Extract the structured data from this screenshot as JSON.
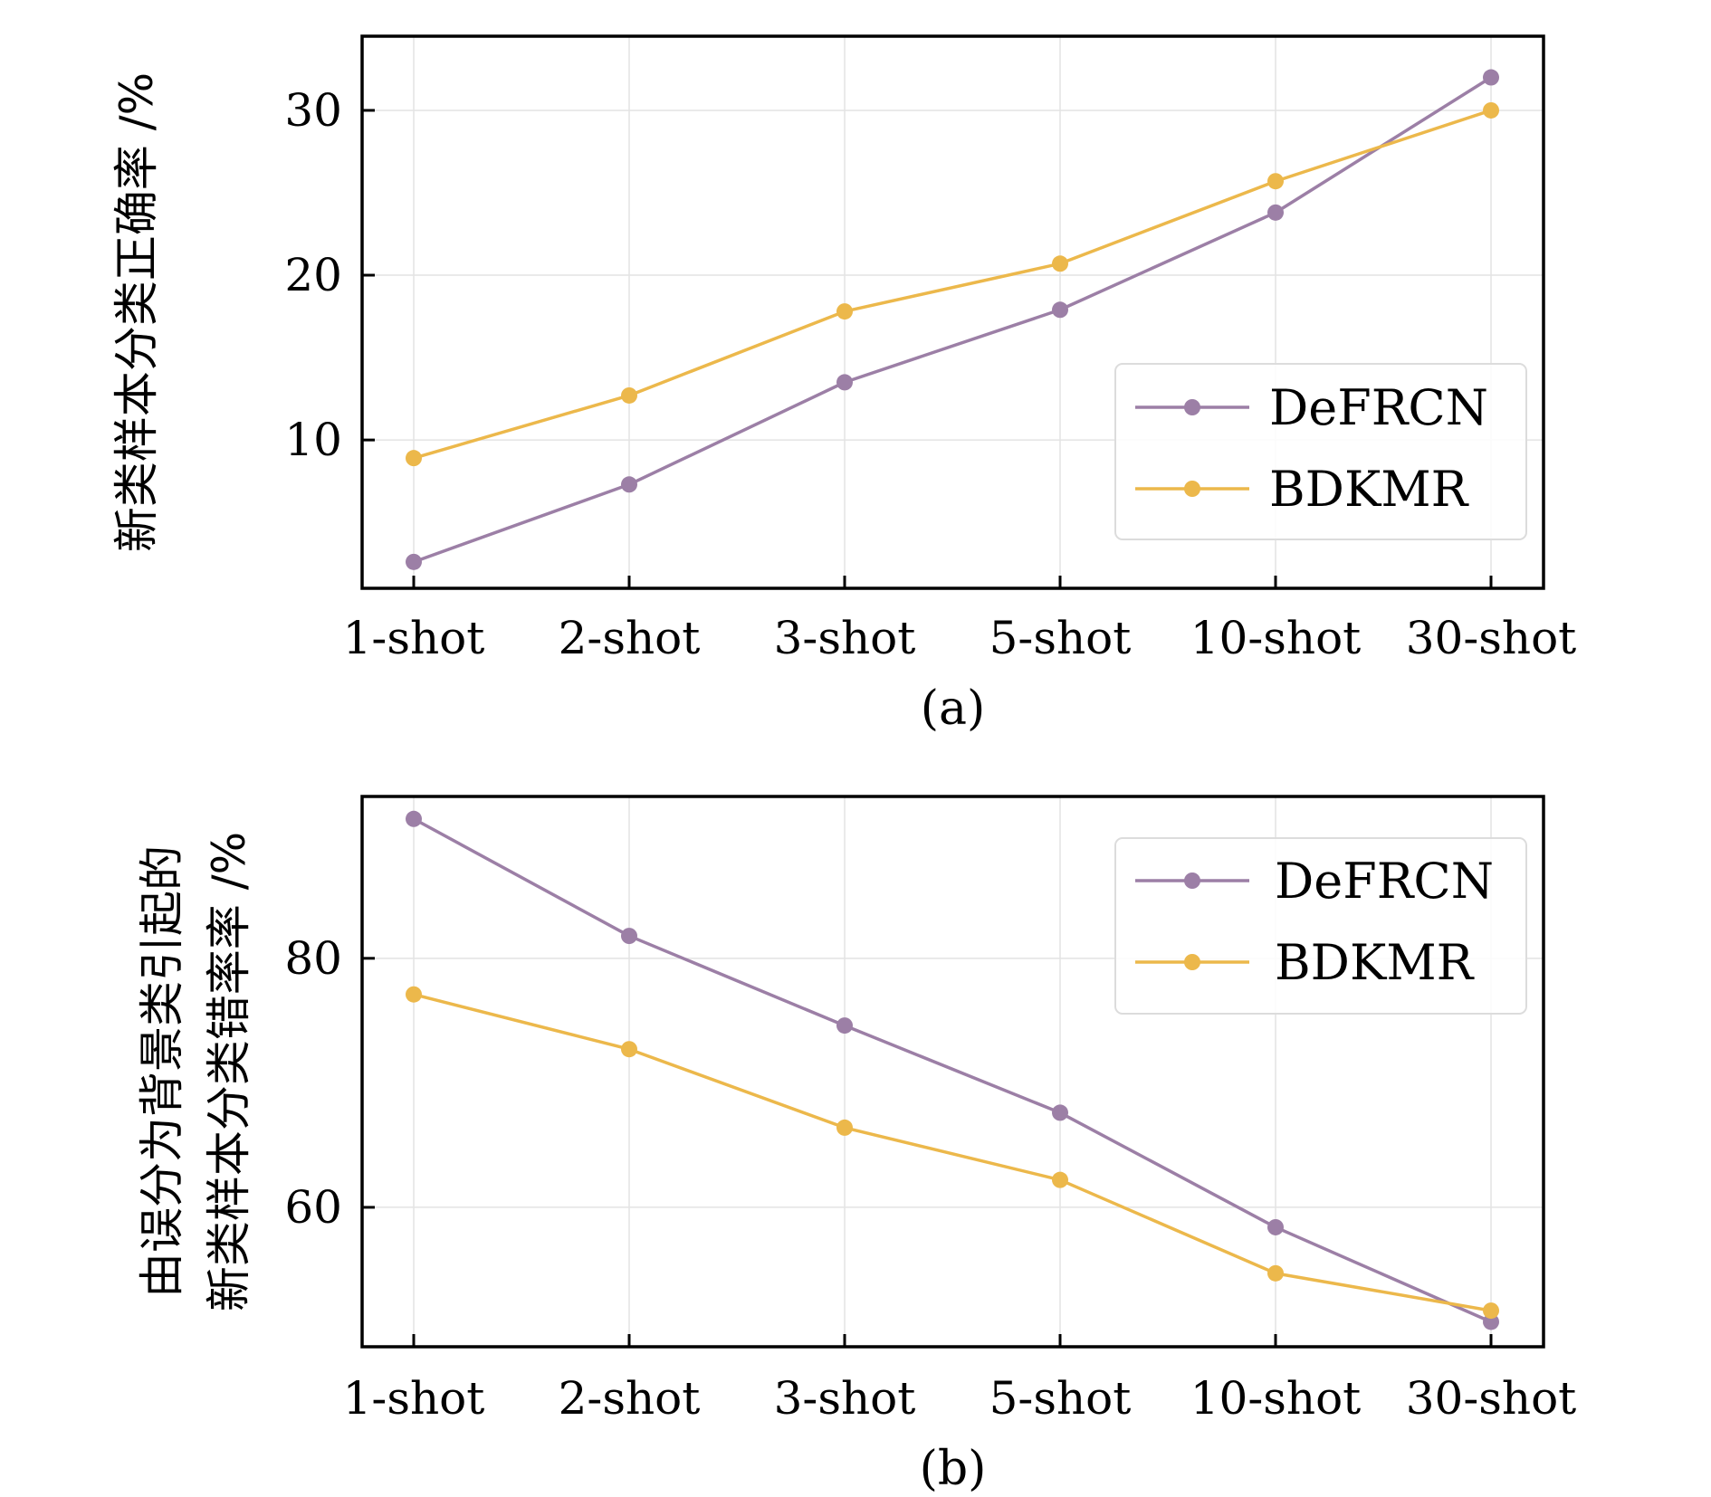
{
  "chart_data": [
    {
      "type": "line",
      "caption": "(a)",
      "ylabel": [
        "新类样本分类正确率 /%"
      ],
      "categories": [
        "1-shot",
        "2-shot",
        "3-shot",
        "5-shot",
        "10-shot",
        "30-shot"
      ],
      "yticks": [
        10,
        20,
        30
      ],
      "ylim": [
        1,
        34.5
      ],
      "grid": true,
      "legend": "center-right",
      "series": [
        {
          "name": "DeFRCN",
          "color": "#9c7fa6",
          "values": [
            2.6,
            7.3,
            13.5,
            17.9,
            23.8,
            32.0
          ]
        },
        {
          "name": "BDKMR",
          "color": "#ecb84b",
          "values": [
            8.9,
            12.7,
            17.8,
            20.7,
            25.7,
            30.0
          ]
        }
      ]
    },
    {
      "type": "line",
      "caption": "(b)",
      "ylabel": [
        "由误分为背景类引起的",
        "新类样本分类错率率 /%"
      ],
      "categories": [
        "1-shot",
        "2-shot",
        "3-shot",
        "5-shot",
        "10-shot",
        "30-shot"
      ],
      "yticks": [
        60,
        80
      ],
      "ylim": [
        48.8,
        93.0
      ],
      "grid": true,
      "legend": "top-right",
      "series": [
        {
          "name": "DeFRCN",
          "color": "#9c7fa6",
          "values": [
            91.2,
            81.8,
            74.6,
            67.6,
            58.4,
            50.8
          ]
        },
        {
          "name": "BDKMR",
          "color": "#ecb84b",
          "values": [
            77.1,
            72.7,
            66.4,
            62.2,
            54.7,
            51.7
          ]
        }
      ]
    }
  ]
}
